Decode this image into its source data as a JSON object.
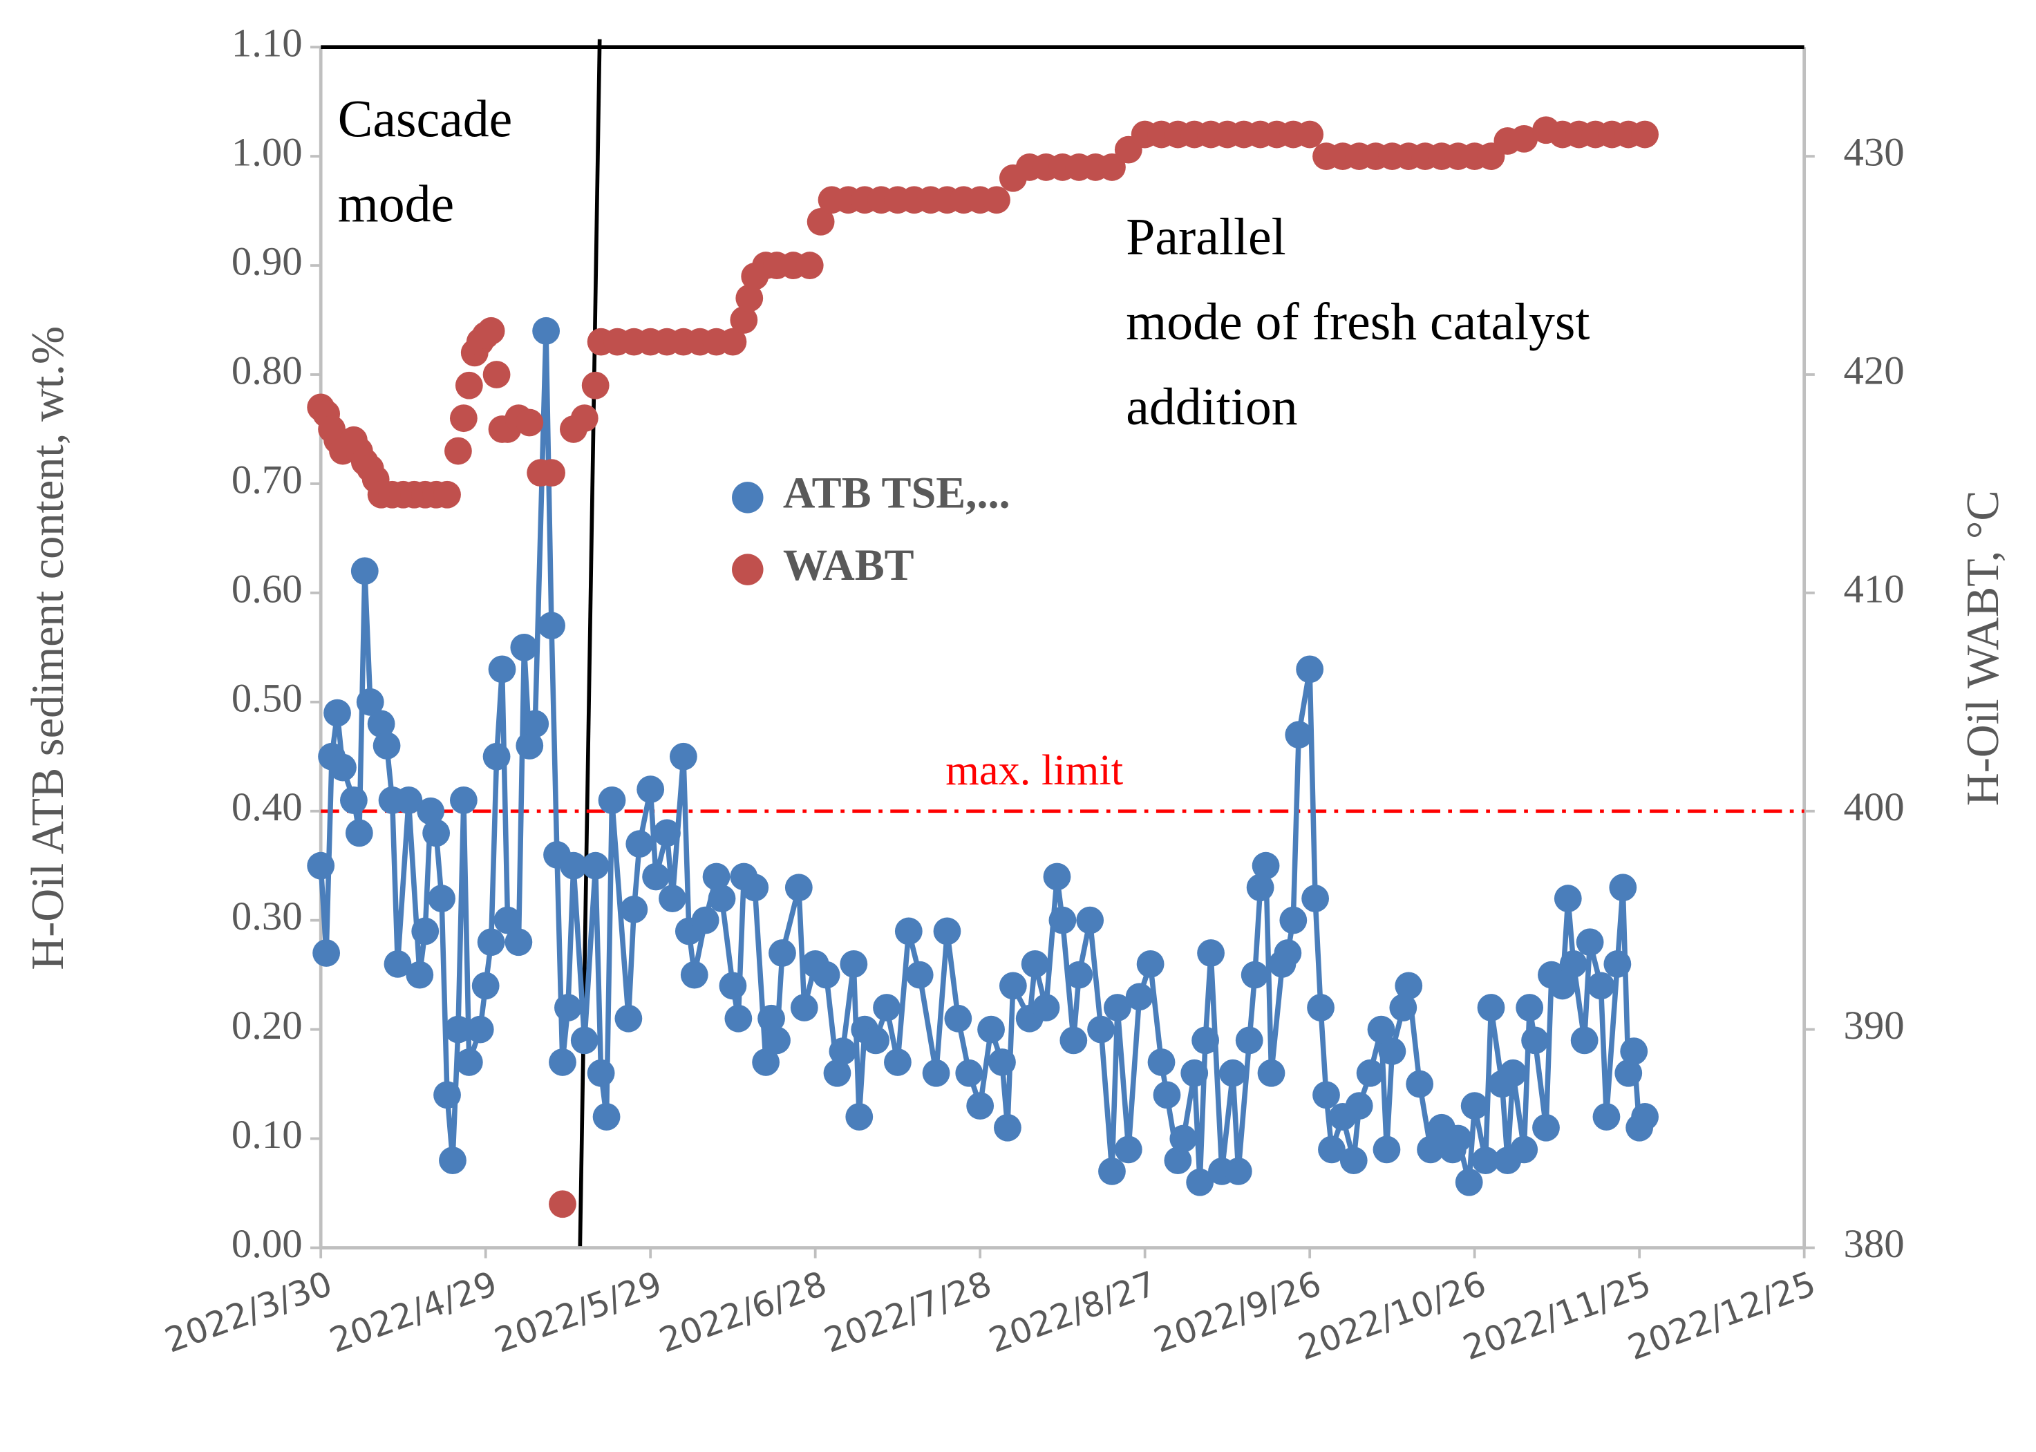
{
  "chart_data": {
    "type": "line",
    "y_label": "H-Oil ATB sediment content, wt.%",
    "y2_label": "H-Oil WABT, °C",
    "xlim": [
      "2022-03-30",
      "2022-12-25"
    ],
    "xticks": [
      {
        "value": "2022-03-30",
        "label": "2022/3/30"
      },
      {
        "value": "2022-04-29",
        "label": "2022/4/29"
      },
      {
        "value": "2022-05-29",
        "label": "2022/5/29"
      },
      {
        "value": "2022-06-28",
        "label": "2022/6/28"
      },
      {
        "value": "2022-07-28",
        "label": "2022/7/28"
      },
      {
        "value": "2022-08-27",
        "label": "2022/8/27"
      },
      {
        "value": "2022-09-26",
        "label": "2022/9/26"
      },
      {
        "value": "2022-10-26",
        "label": "2022/10/26"
      },
      {
        "value": "2022-11-25",
        "label": "2022/11/25"
      },
      {
        "value": "2022-12-25",
        "label": "2022/12/25"
      }
    ],
    "ylim": [
      0,
      1.1
    ],
    "yticks": [
      {
        "value": 0,
        "label": "0.00"
      },
      {
        "value": 0.1,
        "label": "0.10"
      },
      {
        "value": 0.2,
        "label": "0.20"
      },
      {
        "value": 0.3,
        "label": "0.30"
      },
      {
        "value": 0.4,
        "label": "0.40"
      },
      {
        "value": 0.5,
        "label": "0.50"
      },
      {
        "value": 0.6,
        "label": "0.60"
      },
      {
        "value": 0.7,
        "label": "0.70"
      },
      {
        "value": 0.8,
        "label": "0.80"
      },
      {
        "value": 0.9,
        "label": "0.90"
      },
      {
        "value": 1.0,
        "label": "1.00"
      },
      {
        "value": 1.1,
        "label": "1.10"
      }
    ],
    "y2lim": [
      380,
      435
    ],
    "y2ticks": [
      380,
      390,
      400,
      410,
      420,
      430
    ],
    "legend": "center",
    "reference_lines": [
      {
        "value": 0.4,
        "label": "max. limit",
        "color": "#ff0000"
      }
    ],
    "annotations": [
      {
        "lines": [
          "Cascade",
          "mode"
        ]
      },
      {
        "lines": [
          "Parallel",
          "mode of fresh catalyst",
          "addition"
        ]
      }
    ],
    "series": [
      {
        "name": "ATB TSE,...",
        "color": "#4a7ebb",
        "markers": true,
        "line": true,
        "x": [
          "2022-03-30",
          "2022-03-31",
          "2022-04-01",
          "2022-04-02",
          "2022-04-03",
          "2022-04-05",
          "2022-04-06",
          "2022-04-07",
          "2022-04-08",
          "2022-04-10",
          "2022-04-11",
          "2022-04-12",
          "2022-04-13",
          "2022-04-15",
          "2022-04-17",
          "2022-04-18",
          "2022-04-19",
          "2022-04-20",
          "2022-04-21",
          "2022-04-22",
          "2022-04-23",
          "2022-04-24",
          "2022-04-25",
          "2022-04-26",
          "2022-04-28",
          "2022-04-29",
          "2022-04-30",
          "2022-05-01",
          "2022-05-02",
          "2022-05-03",
          "2022-05-05",
          "2022-05-06",
          "2022-05-07",
          "2022-05-08",
          "2022-05-10",
          "2022-05-11",
          "2022-05-12",
          "2022-05-13",
          "2022-05-14",
          "2022-05-15",
          "2022-05-17",
          "2022-05-19",
          "2022-05-20",
          "2022-05-21",
          "2022-05-22",
          "2022-05-25",
          "2022-05-26",
          "2022-05-27",
          "2022-05-29",
          "2022-05-30",
          "2022-06-01",
          "2022-06-02",
          "2022-06-04",
          "2022-06-05",
          "2022-06-06",
          "2022-06-08",
          "2022-06-10",
          "2022-06-11",
          "2022-06-13",
          "2022-06-14",
          "2022-06-15",
          "2022-06-17",
          "2022-06-19",
          "2022-06-20",
          "2022-06-21",
          "2022-06-22",
          "2022-06-25",
          "2022-06-26",
          "2022-06-28",
          "2022-06-30",
          "2022-07-02",
          "2022-07-03",
          "2022-07-05",
          "2022-07-06",
          "2022-07-07",
          "2022-07-09",
          "2022-07-11",
          "2022-07-13",
          "2022-07-15",
          "2022-07-17",
          "2022-07-20",
          "2022-07-22",
          "2022-07-24",
          "2022-07-26",
          "2022-07-28",
          "2022-07-30",
          "2022-08-01",
          "2022-08-02",
          "2022-08-03",
          "2022-08-06",
          "2022-08-07",
          "2022-08-09",
          "2022-08-11",
          "2022-08-12",
          "2022-08-14",
          "2022-08-15",
          "2022-08-17",
          "2022-08-19",
          "2022-08-21",
          "2022-08-22",
          "2022-08-24",
          "2022-08-26",
          "2022-08-28",
          "2022-08-30",
          "2022-08-31",
          "2022-09-02",
          "2022-09-03",
          "2022-09-05",
          "2022-09-06",
          "2022-09-07",
          "2022-09-08",
          "2022-09-10",
          "2022-09-12",
          "2022-09-13",
          "2022-09-15",
          "2022-09-16",
          "2022-09-17",
          "2022-09-18",
          "2022-09-19",
          "2022-09-21",
          "2022-09-22",
          "2022-09-23",
          "2022-09-24",
          "2022-09-26",
          "2022-09-27",
          "2022-09-28",
          "2022-09-29",
          "2022-09-30",
          "2022-10-02",
          "2022-10-04",
          "2022-10-05",
          "2022-10-07",
          "2022-10-09",
          "2022-10-10",
          "2022-10-11",
          "2022-10-13",
          "2022-10-14",
          "2022-10-16",
          "2022-10-18",
          "2022-10-20",
          "2022-10-22",
          "2022-10-23",
          "2022-10-25",
          "2022-10-26",
          "2022-10-28",
          "2022-10-29",
          "2022-10-31",
          "2022-11-01",
          "2022-11-02",
          "2022-11-04",
          "2022-11-05",
          "2022-11-06",
          "2022-11-08",
          "2022-11-09",
          "2022-11-11",
          "2022-11-12",
          "2022-11-13",
          "2022-11-15",
          "2022-11-16",
          "2022-11-18",
          "2022-11-19",
          "2022-11-21",
          "2022-11-22",
          "2022-11-23",
          "2022-11-24",
          "2022-11-25",
          "2022-11-26"
        ],
        "values": [
          0.35,
          0.27,
          0.45,
          0.49,
          0.44,
          0.41,
          0.38,
          0.62,
          0.5,
          0.48,
          0.46,
          0.41,
          0.26,
          0.41,
          0.25,
          0.29,
          0.4,
          0.38,
          0.32,
          0.14,
          0.08,
          0.2,
          0.41,
          0.17,
          0.2,
          0.24,
          0.28,
          0.45,
          0.53,
          0.3,
          0.28,
          0.55,
          0.46,
          0.48,
          0.84,
          0.57,
          0.36,
          0.17,
          0.22,
          0.35,
          0.19,
          0.35,
          0.16,
          0.12,
          0.41,
          0.21,
          0.31,
          0.37,
          0.42,
          0.34,
          0.38,
          0.32,
          0.45,
          0.29,
          0.25,
          0.3,
          0.34,
          0.32,
          0.24,
          0.21,
          0.34,
          0.33,
          0.17,
          0.21,
          0.19,
          0.27,
          0.33,
          0.22,
          0.26,
          0.25,
          0.16,
          0.18,
          0.26,
          0.12,
          0.2,
          0.19,
          0.22,
          0.17,
          0.29,
          0.25,
          0.16,
          0.29,
          0.21,
          0.16,
          0.13,
          0.2,
          0.17,
          0.11,
          0.24,
          0.21,
          0.26,
          0.22,
          0.34,
          0.3,
          0.19,
          0.25,
          0.3,
          0.2,
          0.07,
          0.22,
          0.09,
          0.23,
          0.26,
          0.17,
          0.14,
          0.08,
          0.1,
          0.16,
          0.06,
          0.19,
          0.27,
          0.07,
          0.16,
          0.07,
          0.19,
          0.25,
          0.33,
          0.35,
          0.16,
          0.26,
          0.27,
          0.3,
          0.47,
          0.53,
          0.32,
          0.22,
          0.14,
          0.09,
          0.12,
          0.08,
          0.13,
          0.16,
          0.2,
          0.09,
          0.18,
          0.22,
          0.24,
          0.15,
          0.09,
          0.11,
          0.09,
          0.1,
          0.06,
          0.13,
          0.08,
          0.22,
          0.15,
          0.08,
          0.16,
          0.09,
          0.22,
          0.19,
          0.11,
          0.25,
          0.24,
          0.32,
          0.26,
          0.19,
          0.28,
          0.24,
          0.12,
          0.26,
          0.33,
          0.16,
          0.18,
          0.11,
          0.12
        ]
      },
      {
        "name": "WABT",
        "color": "#c0504d",
        "markers": true,
        "line": false,
        "axis": "y2",
        "x": [
          "2022-03-30",
          "2022-03-31",
          "2022-04-01",
          "2022-04-02",
          "2022-04-03",
          "2022-04-05",
          "2022-04-06",
          "2022-04-07",
          "2022-04-08",
          "2022-04-09",
          "2022-04-10",
          "2022-04-12",
          "2022-04-14",
          "2022-04-16",
          "2022-04-18",
          "2022-04-20",
          "2022-04-22",
          "2022-04-24",
          "2022-04-25",
          "2022-04-26",
          "2022-04-27",
          "2022-04-28",
          "2022-04-29",
          "2022-04-30",
          "2022-05-01",
          "2022-05-02",
          "2022-05-03",
          "2022-05-05",
          "2022-05-07",
          "2022-05-09",
          "2022-05-11",
          "2022-05-13",
          "2022-05-15",
          "2022-05-17",
          "2022-05-19",
          "2022-05-20",
          "2022-05-23",
          "2022-05-26",
          "2022-05-29",
          "2022-06-01",
          "2022-06-04",
          "2022-06-07",
          "2022-06-10",
          "2022-06-13",
          "2022-06-15",
          "2022-06-16",
          "2022-06-17",
          "2022-06-19",
          "2022-06-21",
          "2022-06-24",
          "2022-06-27",
          "2022-06-29",
          "2022-07-01",
          "2022-07-04",
          "2022-07-07",
          "2022-07-10",
          "2022-07-13",
          "2022-07-16",
          "2022-07-19",
          "2022-07-22",
          "2022-07-25",
          "2022-07-28",
          "2022-07-31",
          "2022-08-03",
          "2022-08-06",
          "2022-08-09",
          "2022-08-12",
          "2022-08-15",
          "2022-08-18",
          "2022-08-21",
          "2022-08-24",
          "2022-08-27",
          "2022-08-30",
          "2022-09-02",
          "2022-09-05",
          "2022-09-08",
          "2022-09-11",
          "2022-09-14",
          "2022-09-17",
          "2022-09-20",
          "2022-09-23",
          "2022-09-26",
          "2022-09-29",
          "2022-10-02",
          "2022-10-05",
          "2022-10-08",
          "2022-10-11",
          "2022-10-14",
          "2022-10-17",
          "2022-10-20",
          "2022-10-23",
          "2022-10-26",
          "2022-10-29",
          "2022-11-01",
          "2022-11-04",
          "2022-11-08",
          "2022-11-11",
          "2022-11-14",
          "2022-11-17",
          "2022-11-20",
          "2022-11-23",
          "2022-11-26"
        ],
        "values": [
          418.5,
          418.2,
          417.5,
          417,
          416.5,
          417,
          416.5,
          416,
          415.7,
          415.2,
          414.5,
          414.5,
          414.5,
          414.5,
          414.5,
          414.5,
          414.5,
          416.5,
          418,
          419.5,
          421,
          421.5,
          421.8,
          422,
          420,
          417.5,
          417.5,
          418,
          417.8,
          415.5,
          415.5,
          382,
          417.5,
          418,
          419.5,
          421.5,
          421.5,
          421.5,
          421.5,
          421.5,
          421.5,
          421.5,
          421.5,
          421.5,
          422.5,
          423.5,
          424.5,
          425,
          425,
          425,
          425,
          427,
          428,
          428,
          428,
          428,
          428,
          428,
          428,
          428,
          428,
          428,
          428,
          429,
          429.5,
          429.5,
          429.5,
          429.5,
          429.5,
          429.5,
          430.3,
          431,
          431,
          431,
          431,
          431,
          431,
          431,
          431,
          431,
          431,
          431,
          430,
          430,
          430,
          430,
          430,
          430,
          430,
          430,
          430,
          430,
          430,
          430.7,
          430.8,
          431.2,
          431,
          431,
          431,
          431,
          431,
          431
        ]
      }
    ]
  }
}
